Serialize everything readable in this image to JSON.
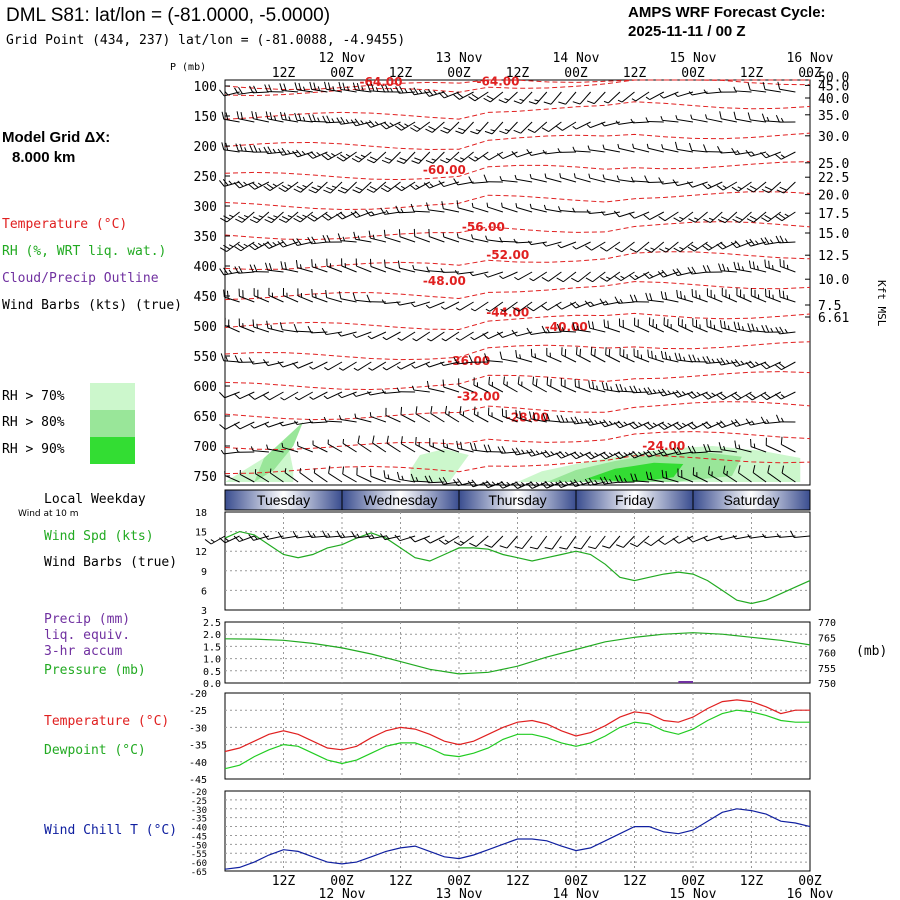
{
  "header": {
    "station": "DML S81:  lat/lon = (-81.0000, -5.0000)",
    "gridpoint": "Grid Point (434, 237) lat/lon = (-81.0088, -4.9455)",
    "cycle_line1": "AMPS WRF Forecast Cycle:",
    "cycle_line2": "2025-11-11 / 00  Z",
    "model_grid_line1": "Model Grid ΔX:",
    "model_grid_line2": "8.000 km"
  },
  "colors": {
    "temperature": "#e02020",
    "rh": "#22aa22",
    "cloud": "#7030a0",
    "wind": "#000000",
    "pressure": "#22aa22",
    "dewpoint": "#22cc22",
    "windchill": "#1020a0",
    "rh70": "#ccf7cc",
    "rh80": "#99e699",
    "rh90": "#33dd33",
    "weekday_bar": "#3a4d8f"
  },
  "legend": {
    "temperature": "Temperature (°C)",
    "rh": "RH (%, WRT liq. wat.)",
    "cloud": "Cloud/Precip Outline",
    "wind": "Wind Barbs (kts) (true)",
    "rh70": "RH > 70%",
    "rh80": "RH > 80%",
    "rh90": "RH > 90%",
    "local_weekday": "Local Weekday",
    "wind_at": "Wind at 10 m",
    "wind_spd": "Wind Spd (kts)",
    "wind_barbs": "Wind Barbs (true)",
    "precip": "Precip (mm)",
    "liq": "liq. equiv.",
    "accum": "3-hr accum",
    "pressure": "Pressure (mb)",
    "temp2": "Temperature (°C)",
    "dewpoint": "Dewpoint (°C)",
    "windchill": "Wind Chill T (°C)"
  },
  "axes": {
    "p_label": "P (mb)",
    "kft_label": "Kft MSL",
    "mb_label": "(mb)",
    "time_ticks": [
      "12Z",
      "00Z",
      "12Z",
      "00Z",
      "12Z",
      "00Z",
      "12Z",
      "00Z",
      "12Z",
      "00Z"
    ],
    "date_labels": [
      "12 Nov",
      "13 Nov",
      "14 Nov",
      "15 Nov",
      "16 Nov"
    ],
    "weekdays": [
      "Tuesday",
      "Wednesday",
      "Thursday",
      "Friday",
      "Saturday"
    ]
  },
  "chart_data": [
    {
      "type": "line",
      "name": "cross-section",
      "x_hours": [
        0,
        120
      ],
      "pressure_levels": [
        100,
        150,
        200,
        250,
        300,
        350,
        400,
        450,
        500,
        550,
        600,
        650,
        700,
        750
      ],
      "pressure_range": [
        90,
        765
      ],
      "height_ticks_kft": [
        "50.0",
        "45.0",
        "40.0",
        "35.0",
        "30.0",
        "25.0",
        "22.5",
        "20.0",
        "17.5",
        "15.0",
        "12.5",
        "10.0",
        "7.5",
        "6.61"
      ],
      "height_tick_pressures": [
        84,
        99,
        120,
        148,
        183,
        228,
        252,
        281,
        312,
        345,
        382,
        422,
        465,
        485
      ],
      "isotherm_labels": [
        {
          "label": "-64.00",
          "x": 32,
          "p": 100
        },
        {
          "label": "-64.00",
          "x": 56,
          "p": 99
        },
        {
          "label": "-60.00",
          "x": 45,
          "p": 247
        },
        {
          "label": "-56.00",
          "x": 53,
          "p": 342
        },
        {
          "label": "-52.00",
          "x": 58,
          "p": 388
        },
        {
          "label": "-48.00",
          "x": 45,
          "p": 432
        },
        {
          "label": "-44.00",
          "x": 58,
          "p": 484
        },
        {
          "label": "-40.00",
          "x": 70,
          "p": 508
        },
        {
          "label": "-36.00",
          "x": 50,
          "p": 565
        },
        {
          "label": "-32.00",
          "x": 52,
          "p": 624
        },
        {
          "label": "-28.00",
          "x": 62,
          "p": 659
        },
        {
          "label": "-24.00",
          "x": 90,
          "p": 707
        }
      ]
    },
    {
      "type": "line",
      "name": "wind-speed",
      "ylim": [
        3,
        18
      ],
      "yticks": [
        "18",
        "15",
        "12",
        "9",
        "6",
        "3"
      ],
      "x_hours": [
        0,
        3,
        6,
        9,
        12,
        15,
        18,
        21,
        24,
        27,
        30,
        33,
        36,
        39,
        42,
        45,
        48,
        51,
        54,
        57,
        60,
        63,
        66,
        69,
        72,
        75,
        78,
        81,
        84,
        87,
        90,
        93,
        96,
        99,
        102,
        105,
        108,
        111,
        114,
        117,
        120
      ],
      "values": [
        14,
        15,
        14.5,
        13,
        11.5,
        11,
        11.5,
        12.5,
        13,
        14,
        14.8,
        14,
        12.5,
        11,
        10.5,
        11.5,
        12.5,
        12.5,
        12.3,
        11.5,
        11,
        10.5,
        11,
        11.5,
        12,
        11.5,
        10,
        8,
        7.5,
        8,
        8.5,
        8.8,
        8.5,
        7.5,
        6,
        4.5,
        4,
        4.5,
        5.5,
        6.5,
        7.5
      ]
    },
    {
      "type": "line",
      "name": "pressure",
      "ylim": [
        750,
        770
      ],
      "precip_ylim": [
        0,
        2.5
      ],
      "yticks_left": [
        "2.5",
        "2.0",
        "1.5",
        "1.0",
        "0.5",
        "0.0"
      ],
      "yticks_right": [
        "770",
        "765",
        "760",
        "755",
        "750"
      ],
      "x_hours": [
        0,
        6,
        12,
        18,
        24,
        30,
        36,
        42,
        48,
        54,
        60,
        66,
        72,
        78,
        84,
        90,
        96,
        102,
        108,
        114,
        120
      ],
      "values": [
        764.5,
        764.4,
        764,
        763,
        761.5,
        759.5,
        757,
        754.5,
        753,
        753.5,
        755.5,
        758.5,
        761,
        763.5,
        765,
        766,
        766.5,
        766,
        765,
        764,
        762.5
      ]
    },
    {
      "type": "line",
      "name": "temperature-dewpoint",
      "ylim": [
        -45,
        -20
      ],
      "yticks": [
        "-20",
        "-25",
        "-30",
        "-35",
        "-40",
        "-45"
      ],
      "x_hours": [
        0,
        3,
        6,
        9,
        12,
        15,
        18,
        21,
        24,
        27,
        30,
        33,
        36,
        39,
        42,
        45,
        48,
        51,
        54,
        57,
        60,
        63,
        66,
        69,
        72,
        75,
        78,
        81,
        84,
        87,
        90,
        93,
        96,
        99,
        102,
        105,
        108,
        111,
        114,
        117,
        120
      ],
      "series": [
        {
          "name": "Temperature",
          "values": [
            -37,
            -36,
            -34,
            -32,
            -31,
            -32,
            -34,
            -36,
            -36.5,
            -35.5,
            -33,
            -31,
            -30,
            -30.5,
            -32,
            -34,
            -35,
            -34,
            -32,
            -30,
            -28.5,
            -28,
            -29,
            -31,
            -32.5,
            -31.5,
            -29.5,
            -27,
            -25.5,
            -26,
            -28,
            -28.5,
            -27,
            -24.5,
            -22.5,
            -22,
            -22.5,
            -24,
            -26,
            -25,
            -25
          ]
        },
        {
          "name": "Dewpoint",
          "values": [
            -42,
            -41,
            -38.5,
            -36.5,
            -35,
            -35.5,
            -37.5,
            -39.5,
            -40.5,
            -39.5,
            -37.5,
            -35.5,
            -34.5,
            -34.5,
            -36,
            -38,
            -38.5,
            -37.5,
            -36,
            -33.5,
            -32,
            -32,
            -33,
            -34.5,
            -35.5,
            -34.5,
            -32.5,
            -30,
            -28.5,
            -29,
            -31,
            -32,
            -30.5,
            -28,
            -26,
            -25,
            -25.5,
            -26.5,
            -28,
            -28.5,
            -28.5
          ]
        }
      ]
    },
    {
      "type": "line",
      "name": "wind-chill",
      "ylim": [
        -65,
        -20
      ],
      "yticks": [
        "-20",
        "-25",
        "-30",
        "-35",
        "-40",
        "-45",
        "-50",
        "-55",
        "-60",
        "-65"
      ],
      "x_hours": [
        0,
        3,
        6,
        9,
        12,
        15,
        18,
        21,
        24,
        27,
        30,
        33,
        36,
        39,
        42,
        45,
        48,
        51,
        54,
        57,
        60,
        63,
        66,
        69,
        72,
        75,
        78,
        81,
        84,
        87,
        90,
        93,
        96,
        99,
        102,
        105,
        108,
        111,
        114,
        117,
        120
      ],
      "values": [
        -64,
        -63,
        -60,
        -56,
        -53,
        -54,
        -57,
        -60,
        -61,
        -60,
        -57,
        -54,
        -52,
        -51,
        -54,
        -57,
        -58,
        -56,
        -53,
        -50,
        -47,
        -47,
        -48,
        -51,
        -53.5,
        -52,
        -48,
        -44,
        -40,
        -40,
        -43,
        -44,
        -42,
        -37,
        -32,
        -30,
        -31,
        -33,
        -37,
        -38,
        -40
      ]
    }
  ]
}
